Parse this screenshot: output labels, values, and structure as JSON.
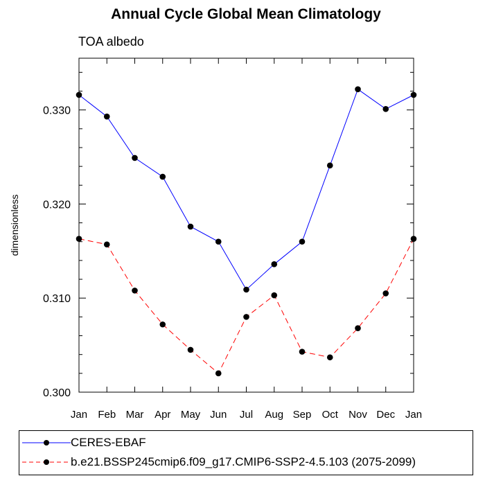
{
  "chart_data": {
    "type": "line",
    "title": "Annual Cycle Global Mean Climatology",
    "subtitle": "TOA albedo",
    "xlabel": "",
    "ylabel": "dimensionless",
    "categories": [
      "Jan",
      "Feb",
      "Mar",
      "Apr",
      "May",
      "Jun",
      "Jul",
      "Aug",
      "Sep",
      "Oct",
      "Nov",
      "Dec",
      "Jan"
    ],
    "ylim": [
      0.3,
      0.3355
    ],
    "yticks": [
      0.3,
      0.31,
      0.32,
      0.33
    ],
    "ytick_labels": [
      "0.300",
      "0.310",
      "0.320",
      "0.330"
    ],
    "grid": false,
    "legend_position": "bottom",
    "series": [
      {
        "name": "CERES-EBAF",
        "color": "#0000ff",
        "line_style": "solid",
        "values": [
          0.3316,
          0.3293,
          0.3249,
          0.3229,
          0.3176,
          0.316,
          0.3109,
          0.3136,
          0.316,
          0.3241,
          0.3322,
          0.3301,
          0.3316
        ]
      },
      {
        "name": "b.e21.BSSP245cmip6.f09_g17.CMIP6-SSP2-4.5.103 (2075-2099)",
        "color": "#ff0000",
        "line_style": "dashed",
        "values": [
          0.3163,
          0.3157,
          0.3108,
          0.3072,
          0.3045,
          0.302,
          0.308,
          0.3103,
          0.3043,
          0.3037,
          0.3068,
          0.3105,
          0.3163
        ]
      }
    ]
  }
}
